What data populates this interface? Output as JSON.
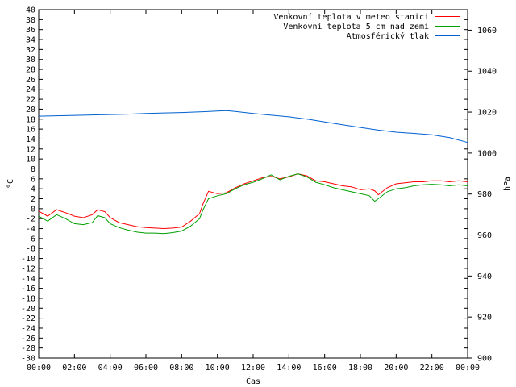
{
  "chart_data": {
    "type": "line",
    "xlabel": "Čas",
    "ylabel": "°C",
    "y2label": "hPa",
    "x_ticks": [
      "00:00",
      "02:00",
      "04:00",
      "06:00",
      "08:00",
      "10:00",
      "12:00",
      "14:00",
      "16:00",
      "18:00",
      "20:00",
      "22:00",
      "00:00"
    ],
    "x_range_hours": [
      0,
      24
    ],
    "ylim": [
      -30,
      40
    ],
    "y_ticks": [
      40,
      38,
      36,
      34,
      32,
      30,
      28,
      26,
      24,
      22,
      20,
      18,
      16,
      14,
      12,
      10,
      8,
      6,
      4,
      2,
      0,
      -2,
      -4,
      -6,
      -8,
      -10,
      -12,
      -14,
      -16,
      -18,
      -20,
      -22,
      -24,
      -26,
      -28,
      -30
    ],
    "y2lim": [
      900,
      1070
    ],
    "y2_ticks": [
      1060,
      1040,
      1020,
      1000,
      980,
      960,
      940,
      920,
      900
    ],
    "legend_position": "top-right",
    "grid": false,
    "series": [
      {
        "name": "Venkovní teplota v meteo stanici",
        "axis": "left",
        "color": "#ff0000",
        "x": [
          0,
          0.5,
          1,
          1.5,
          2,
          2.5,
          3,
          3.3,
          3.7,
          4,
          4.5,
          5,
          5.5,
          6,
          6.5,
          7,
          7.5,
          8,
          8.5,
          9,
          9.2,
          9.5,
          10,
          10.5,
          11,
          11.5,
          12,
          12.5,
          13,
          13.5,
          14,
          14.5,
          15,
          15.5,
          16,
          16.5,
          17,
          17.5,
          18,
          18.5,
          18.8,
          19,
          19.5,
          20,
          20.5,
          21,
          21.5,
          22,
          22.5,
          23,
          23.5,
          24
        ],
        "values": [
          -0.5,
          -1.5,
          -0.2,
          -0.8,
          -1.5,
          -1.8,
          -1.2,
          -0.2,
          -0.6,
          -1.8,
          -2.8,
          -3.2,
          -3.6,
          -3.8,
          -3.9,
          -4.0,
          -3.9,
          -3.7,
          -2.5,
          -1.0,
          1.0,
          3.5,
          3.0,
          3.2,
          4.2,
          5.0,
          5.6,
          6.2,
          6.5,
          6.0,
          6.4,
          7.0,
          6.6,
          5.6,
          5.4,
          5.0,
          4.6,
          4.4,
          3.8,
          4.0,
          3.6,
          2.8,
          4.2,
          5.0,
          5.2,
          5.4,
          5.4,
          5.6,
          5.6,
          5.4,
          5.6,
          5.4
        ]
      },
      {
        "name": "Venkovní teplota 5 cm nad zemí",
        "axis": "left",
        "color": "#00a000",
        "x": [
          0,
          0.5,
          1,
          1.5,
          2,
          2.5,
          3,
          3.3,
          3.7,
          4,
          4.5,
          5,
          5.5,
          6,
          6.5,
          7,
          7.5,
          8,
          8.5,
          9,
          9.2,
          9.5,
          10,
          10.5,
          11,
          11.5,
          12,
          12.5,
          13,
          13.5,
          14,
          14.5,
          15,
          15.5,
          16,
          16.5,
          17,
          17.5,
          18,
          18.5,
          18.8,
          19,
          19.5,
          20,
          20.5,
          21,
          21.5,
          22,
          22.5,
          23,
          23.5,
          24
        ],
        "values": [
          -1.5,
          -2.5,
          -1.2,
          -2.0,
          -3.0,
          -3.2,
          -2.8,
          -1.4,
          -1.8,
          -3.0,
          -3.8,
          -4.3,
          -4.7,
          -4.9,
          -4.9,
          -5.0,
          -4.8,
          -4.5,
          -3.5,
          -2.0,
          -0.2,
          2.0,
          2.6,
          3.0,
          4.0,
          4.8,
          5.3,
          6.0,
          6.8,
          5.8,
          6.5,
          7.0,
          6.4,
          5.3,
          4.8,
          4.2,
          3.8,
          3.4,
          3.0,
          2.6,
          1.5,
          2.0,
          3.4,
          4.0,
          4.2,
          4.6,
          4.8,
          4.9,
          4.8,
          4.6,
          4.8,
          4.6
        ]
      },
      {
        "name": "Atmosférický tlak",
        "axis": "right",
        "color": "#0060d0",
        "x": [
          0,
          1,
          2,
          3,
          4,
          5,
          6,
          7,
          8,
          9,
          10,
          10.5,
          11,
          12,
          13,
          14,
          15,
          16,
          17,
          18,
          19,
          20,
          21,
          22,
          23,
          24
        ],
        "values": [
          1018.0,
          1018.2,
          1018.4,
          1018.6,
          1018.8,
          1019.0,
          1019.3,
          1019.6,
          1019.8,
          1020.1,
          1020.5,
          1020.7,
          1020.3,
          1019.3,
          1018.5,
          1017.7,
          1016.6,
          1015.2,
          1013.8,
          1012.5,
          1011.2,
          1010.2,
          1009.6,
          1008.9,
          1007.5,
          1005.2
        ]
      }
    ]
  }
}
